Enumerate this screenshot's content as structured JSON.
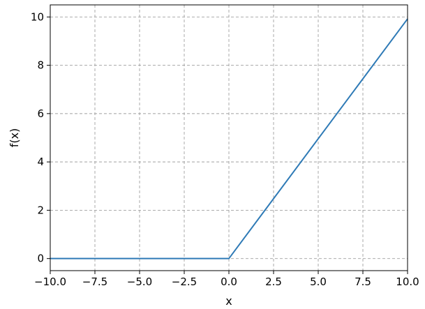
{
  "chart_data": {
    "type": "line",
    "title": "",
    "xlabel": "x",
    "ylabel": "f(x)",
    "xlim": [
      -10,
      10
    ],
    "ylim": [
      -0.5,
      10.5
    ],
    "x_ticks": [
      -10,
      -7.5,
      -5,
      -2.5,
      0,
      2.5,
      5,
      7.5,
      10
    ],
    "x_tick_labels": [
      "−10.0",
      "−7.5",
      "−5.0",
      "−2.5",
      "0.0",
      "2.5",
      "5.0",
      "7.5",
      "10.0"
    ],
    "y_ticks": [
      0,
      2,
      4,
      6,
      8,
      10
    ],
    "y_tick_labels": [
      "0",
      "2",
      "4",
      "6",
      "8",
      "10"
    ],
    "grid": true,
    "grid_style": "dashed",
    "series": [
      {
        "color": "#2e7ab6",
        "x": [
          -10,
          0,
          10
        ],
        "y": [
          0,
          0,
          9.92
        ]
      }
    ]
  }
}
